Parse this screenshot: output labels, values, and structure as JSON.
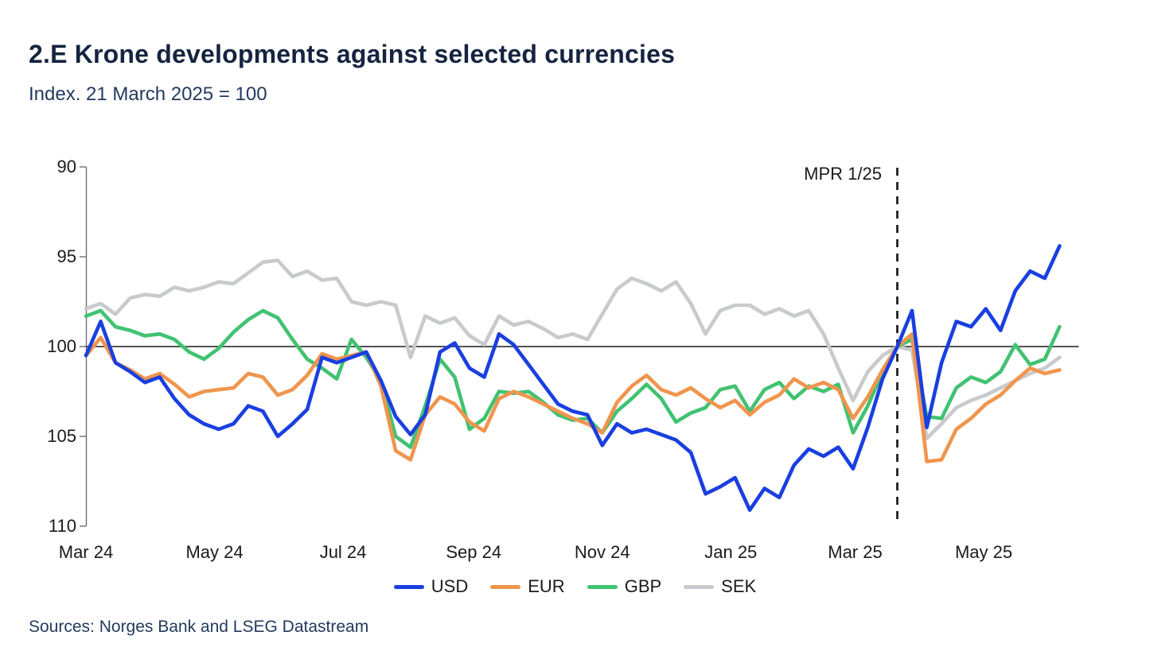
{
  "header": {
    "title": "2.E Krone developments against selected currencies",
    "subtitle": "Index. 21 March 2025 = 100"
  },
  "footer": {
    "sources": "Sources: Norges Bank and LSEG  Datastream"
  },
  "colors": {
    "title_text": "#152440",
    "subtitle_text": "#233a5e",
    "axis_line": "#6f6f6f",
    "baseline_line": "#1a1a1a",
    "annotation_line": "#111111",
    "usd": "#1a3fe0",
    "eur": "#f0954d",
    "gbp": "#41c272",
    "sek": "#c8cacd"
  },
  "chart_data": {
    "type": "line",
    "title": "2.E Krone developments against selected currencies",
    "subtitle": "Index. 21 March 2025 = 100",
    "ylabel": "Index (21 March 2025 = 100), inverted axis",
    "y_axis": {
      "min": 90,
      "max": 110,
      "inverted": true,
      "ticks": [
        90,
        95,
        100,
        105,
        110
      ]
    },
    "baseline_value": 100,
    "grid": false,
    "legend_position": "bottom-center",
    "x_start_date": "2024-03-01",
    "x_interval_days": 7,
    "x_total_days": 462,
    "x_data_fraction": 0.915,
    "x_ticks": [
      {
        "label": "Mar 24",
        "day": 0
      },
      {
        "label": "May 24",
        "day": 61
      },
      {
        "label": "Jul 24",
        "day": 122
      },
      {
        "label": "Sep 24",
        "day": 184
      },
      {
        "label": "Nov 24",
        "day": 245
      },
      {
        "label": "Jan 25",
        "day": 306
      },
      {
        "label": "Mar 25",
        "day": 365
      },
      {
        "label": "May 25",
        "day": 426
      }
    ],
    "annotation": {
      "label": "MPR 1/25",
      "day": 385,
      "style": "dashed-vertical"
    },
    "series": [
      {
        "name": "USD",
        "color": "#1a3fe0",
        "values": [
          100.5,
          98.6,
          100.9,
          101.4,
          102.0,
          101.7,
          102.9,
          103.8,
          104.3,
          104.6,
          104.3,
          103.3,
          103.6,
          105.0,
          104.3,
          103.5,
          100.6,
          100.9,
          100.6,
          100.3,
          101.9,
          103.9,
          104.9,
          103.8,
          100.3,
          99.8,
          101.2,
          101.7,
          99.3,
          99.9,
          101.0,
          102.1,
          103.2,
          103.6,
          103.8,
          105.5,
          104.3,
          104.8,
          104.6,
          104.9,
          105.2,
          105.9,
          108.2,
          107.8,
          107.3,
          109.1,
          107.9,
          108.4,
          106.6,
          105.7,
          106.1,
          105.6,
          106.8,
          104.5,
          101.8,
          100.0,
          98.0,
          104.5,
          100.9,
          98.6,
          98.9,
          97.9,
          99.1,
          96.9,
          95.8,
          96.2,
          94.4
        ]
      },
      {
        "name": "EUR",
        "color": "#f0954d",
        "values": [
          100.5,
          99.5,
          100.9,
          101.3,
          101.8,
          101.5,
          102.1,
          102.8,
          102.5,
          102.4,
          102.3,
          101.5,
          101.7,
          102.7,
          102.4,
          101.6,
          100.4,
          100.7,
          100.5,
          100.3,
          102.2,
          105.8,
          106.3,
          103.8,
          102.8,
          103.2,
          104.2,
          104.7,
          102.9,
          102.5,
          102.8,
          103.2,
          103.6,
          104.0,
          104.3,
          104.8,
          103.1,
          102.2,
          101.6,
          102.4,
          102.7,
          102.3,
          102.9,
          103.4,
          103.0,
          103.8,
          103.1,
          102.7,
          101.8,
          102.3,
          102.0,
          102.4,
          104.0,
          102.8,
          101.3,
          100.0,
          99.3,
          106.4,
          106.3,
          104.6,
          104.0,
          103.2,
          102.7,
          101.9,
          101.2,
          101.5,
          101.3
        ]
      },
      {
        "name": "GBP",
        "color": "#41c272",
        "values": [
          98.3,
          98.0,
          98.9,
          99.1,
          99.4,
          99.3,
          99.6,
          100.3,
          100.7,
          100.1,
          99.2,
          98.5,
          98.0,
          98.4,
          99.6,
          100.7,
          101.2,
          101.8,
          99.6,
          100.6,
          101.9,
          105.0,
          105.6,
          103.3,
          100.7,
          101.7,
          104.6,
          104.0,
          102.5,
          102.6,
          102.5,
          103.1,
          103.8,
          104.1,
          104.0,
          104.8,
          103.6,
          102.9,
          102.1,
          102.9,
          104.2,
          103.7,
          103.4,
          102.4,
          102.2,
          103.6,
          102.4,
          102.0,
          102.9,
          102.2,
          102.5,
          102.1,
          104.8,
          103.3,
          101.4,
          100.0,
          99.6,
          103.9,
          104.0,
          102.3,
          101.7,
          102.0,
          101.4,
          99.9,
          101.0,
          100.7,
          98.9
        ]
      },
      {
        "name": "SEK",
        "color": "#c8cacd",
        "values": [
          97.9,
          97.6,
          98.2,
          97.3,
          97.1,
          97.2,
          96.7,
          96.9,
          96.7,
          96.4,
          96.5,
          95.9,
          95.3,
          95.2,
          96.1,
          95.8,
          96.3,
          96.2,
          97.5,
          97.7,
          97.5,
          97.7,
          100.6,
          98.3,
          98.7,
          98.4,
          99.4,
          99.9,
          98.3,
          98.8,
          98.6,
          99.0,
          99.5,
          99.3,
          99.6,
          98.2,
          96.8,
          96.2,
          96.5,
          96.9,
          96.4,
          97.6,
          99.3,
          98.0,
          97.7,
          97.7,
          98.2,
          97.9,
          98.3,
          98.0,
          99.3,
          101.2,
          103.0,
          101.4,
          100.5,
          100.0,
          100.2,
          105.1,
          104.3,
          103.4,
          103.0,
          102.7,
          102.3,
          101.9,
          101.5,
          101.2,
          100.6
        ]
      }
    ],
    "legend": [
      "USD",
      "EUR",
      "GBP",
      "SEK"
    ]
  }
}
